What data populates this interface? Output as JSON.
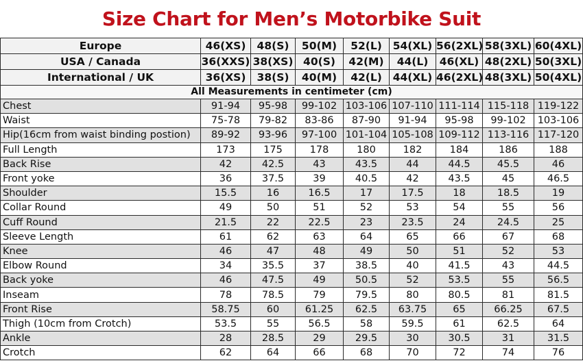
{
  "title": "Size Chart for Men’s Motorbike Suit",
  "header_rows": [
    {
      "label": "Europe",
      "values": [
        "46(XS)",
        "48(S)",
        "50(M)",
        "52(L)",
        "54(XL)",
        "56(2XL)",
        "58(3XL)",
        "60(4XL)"
      ]
    },
    {
      "label": "USA / Canada",
      "values": [
        "36(XXS)",
        "38(XS)",
        "40(S)",
        "42(M)",
        "44(L)",
        "46(XL)",
        "48(2XL)",
        "50(3XL)"
      ]
    },
    {
      "label": "International / UK",
      "values": [
        "36(XS)",
        "38(S)",
        "40(M)",
        "42(L)",
        "44(XL)",
        "46(2XL)",
        "48(3XL)",
        "50(4XL)"
      ]
    }
  ],
  "unit_note": "All Measurements in centimeter (cm)",
  "rows": [
    {
      "label": "Chest",
      "values": [
        "91-94",
        "95-98",
        "99-102",
        "103-106",
        "107-110",
        "111-114",
        "115-118",
        "119-122"
      ]
    },
    {
      "label": "Waist",
      "values": [
        "75-78",
        "79-82",
        "83-86",
        "87-90",
        "91-94",
        "95-98",
        "99-102",
        "103-106"
      ]
    },
    {
      "label": "Hip(16cm from waist binding postion)",
      "values": [
        "89-92",
        "93-96",
        "97-100",
        "101-104",
        "105-108",
        "109-112",
        "113-116",
        "117-120"
      ]
    },
    {
      "label": "Full Length",
      "values": [
        "173",
        "175",
        "178",
        "180",
        "182",
        "184",
        "186",
        "188"
      ]
    },
    {
      "label": "Back Rise",
      "values": [
        "42",
        "42.5",
        "43",
        "43.5",
        "44",
        "44.5",
        "45.5",
        "46"
      ]
    },
    {
      "label": "Front yoke",
      "values": [
        "36",
        "37.5",
        "39",
        "40.5",
        "42",
        "43.5",
        "45",
        "46.5"
      ]
    },
    {
      "label": "Shoulder",
      "values": [
        "15.5",
        "16",
        "16.5",
        "17",
        "17.5",
        "18",
        "18.5",
        "19"
      ]
    },
    {
      "label": "Collar Round",
      "values": [
        "49",
        "50",
        "51",
        "52",
        "53",
        "54",
        "55",
        "56"
      ]
    },
    {
      "label": "Cuff Round",
      "values": [
        "21.5",
        "22",
        "22.5",
        "23",
        "23.5",
        "24",
        "24.5",
        "25"
      ]
    },
    {
      "label": "Sleeve Length",
      "values": [
        "61",
        "62",
        "63",
        "64",
        "65",
        "66",
        "67",
        "68"
      ]
    },
    {
      "label": "Knee",
      "values": [
        "46",
        "47",
        "48",
        "49",
        "50",
        "51",
        "52",
        "53"
      ]
    },
    {
      "label": "Elbow Round",
      "values": [
        "34",
        "35.5",
        "37",
        "38.5",
        "40",
        "41.5",
        "43",
        "44.5"
      ]
    },
    {
      "label": "Back yoke",
      "values": [
        "46",
        "47.5",
        "49",
        "50.5",
        "52",
        "53.5",
        "55",
        "56.5"
      ]
    },
    {
      "label": "Inseam",
      "values": [
        "78",
        "78.5",
        "79",
        "79.5",
        "80",
        "80.5",
        "81",
        "81.5"
      ]
    },
    {
      "label": "Front Rise",
      "values": [
        "58.75",
        "60",
        "61.25",
        "62.5",
        "63.75",
        "65",
        "66.25",
        "67.5"
      ]
    },
    {
      "label": "Thigh (10cm from Crotch)",
      "values": [
        "53.5",
        "55",
        "56.5",
        "58",
        "59.5",
        "61",
        "62.5",
        "64"
      ]
    },
    {
      "label": "Ankle",
      "values": [
        "28",
        "28.5",
        "29",
        "29.5",
        "30",
        "30.5",
        "31",
        "31.5"
      ]
    },
    {
      "label": "Crotch",
      "values": [
        "62",
        "64",
        "66",
        "68",
        "70",
        "72",
        "74",
        "76"
      ]
    }
  ],
  "colors": {
    "title": "#c0121c",
    "header_bg": "#f2f2f2",
    "shaded_row_bg": "#e1e1e1",
    "border": "#2a2a2a"
  }
}
